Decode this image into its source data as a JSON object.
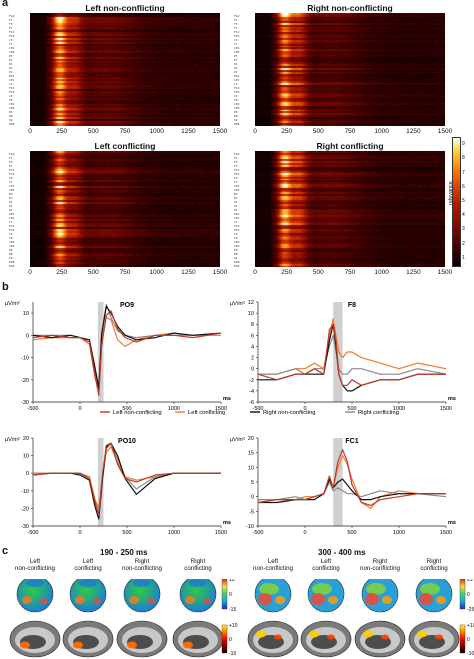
{
  "panels": {
    "a": "a",
    "b": "b",
    "c": "c"
  },
  "heatmaps": [
    {
      "title": "Left non-conflicting"
    },
    {
      "title": "Right non-conflicting"
    },
    {
      "title": "Left conflicting"
    },
    {
      "title": "Right conflicting"
    }
  ],
  "heatmap_xticks": [
    "0",
    "250",
    "500",
    "750",
    "1000",
    "1250",
    "1500"
  ],
  "colorbar": {
    "label": "relevance",
    "ticks": [
      "1",
      "2",
      "3",
      "4",
      "5",
      "6",
      "7",
      "8",
      "9"
    ]
  },
  "channel_labels": [
    "Fp2",
    "Fz",
    "F3",
    "F7",
    "FC1",
    "FC5",
    "C3",
    "T7",
    "CP1",
    "CP5",
    "P3",
    "P7",
    "O1",
    "Oz",
    "Pz",
    "POz",
    "CPz",
    "Cz",
    "FC2",
    "FC6",
    "C4",
    "T8",
    "CP2",
    "CP6",
    "P4",
    "P8",
    "O2",
    "PO8",
    "PO4",
    "AF4",
    "AF8",
    "F6",
    "F2",
    "FCz",
    "C2",
    "C6",
    "CP4",
    "CPz",
    "PO3",
    "F5",
    "F1",
    "FC3",
    "C1",
    "C5",
    "CP3",
    "P5",
    "P1",
    "PO7",
    "PO9",
    "PO10"
  ],
  "erp": {
    "unit_y": "µV/m²",
    "unit_x": "ms",
    "plots": [
      {
        "title": "PO9"
      },
      {
        "title": "F8"
      },
      {
        "title": "PO10"
      },
      {
        "title": "FC1"
      }
    ],
    "legend": [
      "Left non-conflicting",
      "Left conflicting",
      "Right non-conflicting",
      "Right conflicting"
    ],
    "colors": {
      "left_nc": "#c0392b",
      "left_c": "#f07a2a",
      "right_nc": "#111111",
      "right_c": "#8a8a8a",
      "window": "#d0d0d0"
    }
  },
  "chart_data": [
    {
      "type": "line",
      "title": "PO9",
      "xlabel": "ms",
      "ylabel": "µV/m²",
      "xlim": [
        -500,
        1500
      ],
      "ylim": [
        -30,
        15
      ],
      "xticks": [
        "-500",
        "0",
        "500",
        "1000",
        "1500"
      ],
      "yticks": [
        "10",
        "0",
        "-10",
        "-20",
        "-30"
      ],
      "highlight": [
        190,
        250
      ],
      "series": [
        {
          "name": "Left non-conflicting",
          "x": [
            -500,
            -300,
            -100,
            0,
            100,
            160,
            200,
            230,
            280,
            330,
            400,
            480,
            600,
            800,
            1000,
            1200,
            1500
          ],
          "y": [
            -1,
            0,
            -1,
            -1,
            -3,
            -18,
            -27,
            -5,
            9,
            11,
            3,
            -1,
            -3,
            0,
            0,
            -1,
            1
          ]
        },
        {
          "name": "Left conflicting",
          "x": [
            -500,
            -300,
            -100,
            0,
            100,
            160,
            200,
            230,
            280,
            330,
            400,
            480,
            600,
            800,
            1000,
            1200,
            1500
          ],
          "y": [
            -2,
            -1,
            -1,
            -1,
            -4,
            -19,
            -25,
            -3,
            8,
            7,
            -2,
            -5,
            -2,
            0,
            1,
            0,
            0
          ]
        },
        {
          "name": "Right non-conflicting",
          "x": [
            -500,
            -300,
            -100,
            0,
            100,
            160,
            200,
            230,
            280,
            330,
            400,
            480,
            600,
            800,
            1000,
            1200,
            1500
          ],
          "y": [
            0,
            -1,
            0,
            -1,
            -2,
            -15,
            -24,
            0,
            13,
            10,
            4,
            0,
            -2,
            -1,
            1,
            0,
            1
          ]
        },
        {
          "name": "Right conflicting",
          "x": [
            -500,
            -300,
            -100,
            0,
            100,
            160,
            200,
            230,
            280,
            330,
            400,
            480,
            600,
            800,
            1000,
            1200,
            1500
          ],
          "y": [
            0,
            0,
            0,
            -1,
            -2,
            -14,
            -23,
            1,
            14,
            8,
            2,
            0,
            -1,
            0,
            0,
            0,
            1
          ]
        }
      ]
    },
    {
      "type": "line",
      "title": "F8",
      "xlabel": "ms",
      "ylabel": "µV/m²",
      "xlim": [
        -500,
        1500
      ],
      "ylim": [
        -6,
        12
      ],
      "xticks": [
        "-500",
        "0",
        "500",
        "1000",
        "1500"
      ],
      "yticks": [
        "12",
        "10",
        "8",
        "6",
        "4",
        "2",
        "0",
        "-2",
        "-4",
        "-6"
      ],
      "highlight": [
        300,
        400
      ],
      "series": [
        {
          "name": "Left non-conflicting",
          "x": [
            -500,
            -300,
            -100,
            0,
            100,
            200,
            260,
            300,
            330,
            360,
            400,
            450,
            500,
            600,
            800,
            1000,
            1200,
            1500
          ],
          "y": [
            -1,
            -2,
            -1,
            -1,
            0,
            -1,
            7,
            8,
            5,
            -1,
            -3,
            -3,
            -2,
            -3,
            -2,
            -2,
            -1,
            -1
          ]
        },
        {
          "name": "Left conflicting",
          "x": [
            -500,
            -300,
            -100,
            0,
            100,
            200,
            260,
            300,
            330,
            360,
            400,
            450,
            500,
            600,
            800,
            1000,
            1200,
            1500
          ],
          "y": [
            -1,
            -1,
            0,
            0,
            1,
            0,
            6,
            9,
            6,
            3,
            2,
            3,
            3,
            2,
            1,
            0,
            1,
            0
          ]
        },
        {
          "name": "Right non-conflicting",
          "x": [
            -500,
            -300,
            -100,
            0,
            100,
            200,
            260,
            300,
            330,
            360,
            400,
            450,
            500,
            600,
            800,
            1000,
            1200,
            1500
          ],
          "y": [
            -2,
            -2,
            -1,
            -1,
            -1,
            -1,
            5,
            8,
            4,
            -1,
            -3,
            -4,
            -4,
            -3,
            -2,
            -2,
            -1,
            -1
          ]
        },
        {
          "name": "Right conflicting",
          "x": [
            -500,
            -300,
            -100,
            0,
            100,
            200,
            260,
            300,
            330,
            360,
            400,
            450,
            500,
            600,
            800,
            1000,
            1200,
            1500
          ],
          "y": [
            -1,
            -1,
            0,
            -1,
            0,
            0,
            4,
            6,
            3,
            0,
            -1,
            -1,
            0,
            0,
            -1,
            -1,
            0,
            -1
          ]
        }
      ]
    },
    {
      "type": "line",
      "title": "PO10",
      "xlabel": "ms",
      "ylabel": "µV/m²",
      "xlim": [
        -500,
        1500
      ],
      "ylim": [
        -30,
        20
      ],
      "xticks": [
        "-500",
        "0",
        "500",
        "1000",
        "1500"
      ],
      "yticks": [
        "20",
        "10",
        "0",
        "-10",
        "-20",
        "-30"
      ],
      "highlight": [
        190,
        250
      ],
      "series": [
        {
          "name": "Left non-conflicting",
          "x": [
            -500,
            -300,
            -100,
            0,
            100,
            160,
            200,
            240,
            280,
            330,
            400,
            480,
            600,
            800,
            1000,
            1200,
            1500
          ],
          "y": [
            -1,
            0,
            0,
            0,
            -3,
            -16,
            -24,
            0,
            14,
            17,
            5,
            -3,
            -5,
            -1,
            0,
            0,
            0
          ]
        },
        {
          "name": "Left conflicting",
          "x": [
            -500,
            -300,
            -100,
            0,
            100,
            160,
            200,
            240,
            280,
            330,
            400,
            480,
            600,
            800,
            1000,
            1200,
            1500
          ],
          "y": [
            0,
            0,
            0,
            0,
            -2,
            -15,
            -20,
            -2,
            12,
            15,
            6,
            -2,
            -4,
            -2,
            0,
            0,
            0
          ]
        },
        {
          "name": "Right non-conflicting",
          "x": [
            -500,
            -300,
            -100,
            0,
            100,
            160,
            200,
            240,
            280,
            330,
            400,
            480,
            600,
            800,
            1000,
            1200,
            1500
          ],
          "y": [
            -1,
            0,
            0,
            -1,
            -4,
            -19,
            -26,
            -3,
            15,
            17,
            10,
            -3,
            -12,
            -3,
            0,
            0,
            0
          ]
        },
        {
          "name": "Right conflicting",
          "x": [
            -500,
            -300,
            -100,
            0,
            100,
            160,
            200,
            240,
            280,
            330,
            400,
            480,
            600,
            800,
            1000,
            1200,
            1500
          ],
          "y": [
            0,
            0,
            0,
            0,
            -3,
            -17,
            -22,
            -1,
            16,
            17,
            8,
            -2,
            -9,
            -2,
            0,
            0,
            0
          ]
        }
      ]
    },
    {
      "type": "line",
      "title": "FC1",
      "xlabel": "ms",
      "ylabel": "µV/m²",
      "xlim": [
        -500,
        1500
      ],
      "ylim": [
        -10,
        20
      ],
      "xticks": [
        "-500",
        "0",
        "500",
        "1000",
        "1500"
      ],
      "yticks": [
        "20",
        "15",
        "10",
        "5",
        "0",
        "-5",
        "-10"
      ],
      "highlight": [
        300,
        400
      ],
      "series": [
        {
          "name": "Left non-conflicting",
          "x": [
            -500,
            -300,
            -100,
            0,
            100,
            200,
            260,
            300,
            350,
            400,
            450,
            500,
            600,
            700,
            800,
            1000,
            1200,
            1500
          ],
          "y": [
            -2,
            -1,
            -1,
            -1,
            0,
            1,
            7,
            3,
            12,
            16,
            12,
            4,
            -2,
            -3,
            -1,
            0,
            1,
            1
          ]
        },
        {
          "name": "Left conflicting",
          "x": [
            -500,
            -300,
            -100,
            0,
            100,
            200,
            260,
            300,
            350,
            400,
            450,
            500,
            600,
            700,
            800,
            1000,
            1200,
            1500
          ],
          "y": [
            -1,
            -1,
            -1,
            0,
            0,
            1,
            6,
            3,
            10,
            14,
            11,
            6,
            -2,
            -4,
            0,
            2,
            1,
            1
          ]
        },
        {
          "name": "Right non-conflicting",
          "x": [
            -500,
            -300,
            -100,
            0,
            100,
            200,
            260,
            300,
            350,
            400,
            450,
            500,
            600,
            700,
            800,
            1000,
            1200,
            1500
          ],
          "y": [
            -2,
            -2,
            -1,
            -1,
            -1,
            1,
            6,
            3,
            5,
            6,
            4,
            2,
            -1,
            -1,
            0,
            1,
            1,
            1
          ]
        },
        {
          "name": "Right conflicting",
          "x": [
            -500,
            -300,
            -100,
            0,
            100,
            200,
            260,
            300,
            350,
            400,
            450,
            500,
            600,
            700,
            800,
            1000,
            1200,
            1500
          ],
          "y": [
            -1,
            -1,
            0,
            -1,
            0,
            1,
            5,
            2,
            3,
            2,
            1,
            1,
            0,
            1,
            2,
            1,
            1,
            0
          ]
        }
      ]
    }
  ],
  "topo": {
    "group_titles": [
      "190 - 250 ms",
      "300 - 400 ms"
    ],
    "conditions": [
      [
        "Left",
        "non-conflicting"
      ],
      [
        "Left",
        "conflicting"
      ],
      [
        "Right",
        "non-conflicting"
      ],
      [
        "Right",
        "conflicting"
      ]
    ],
    "cb1": [
      "15",
      "0",
      "-15"
    ],
    "cb2": [
      "25",
      "0",
      "-25"
    ],
    "cb3": [
      "+10",
      "0",
      "-10"
    ],
    "cb4": [
      "+10",
      "0",
      "-10"
    ]
  }
}
